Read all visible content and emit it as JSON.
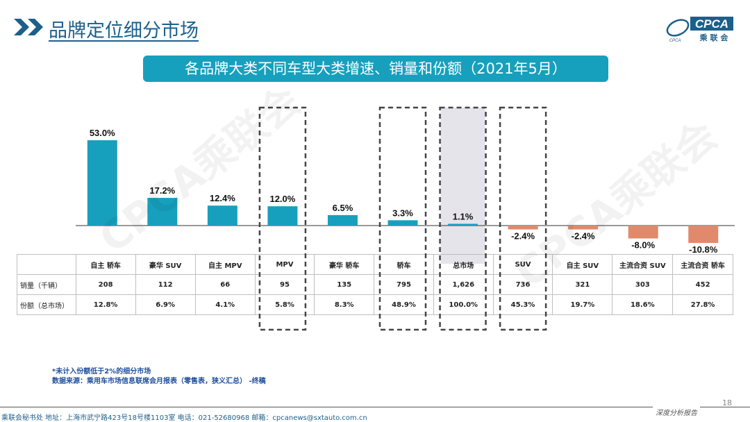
{
  "header": {
    "title": "品牌定位细分市场",
    "logo_text": "CPCA",
    "logo_sub": "乘 联 会",
    "logo_small": "CPCA"
  },
  "banner": {
    "text": "各品牌大类不同车型大类增速、销量和份额（2021年5月）"
  },
  "watermark": {
    "text": "CPCA乘联会"
  },
  "chart_data": {
    "type": "bar",
    "categories": [
      "自主 轿车",
      "豪华 SUV",
      "自主 MPV",
      "MPV",
      "豪华 轿车",
      "轿车",
      "总市场",
      "SUV",
      "自主 SUV",
      "主流合资 SUV",
      "主流合资 轿车"
    ],
    "values": [
      53.0,
      17.2,
      12.4,
      12.0,
      6.5,
      3.3,
      1.1,
      -2.4,
      -2.4,
      -8.0,
      -10.8
    ],
    "labels": [
      "53.0%",
      "17.2%",
      "12.4%",
      "12.0%",
      "6.5%",
      "3.3%",
      "1.1%",
      "-2.4%",
      "-2.4%",
      "-8.0%",
      "-10.8%"
    ],
    "colors": {
      "positive": "#17a0bd",
      "negative": "#e08a6b"
    },
    "highlighted": [
      "MPV",
      "轿车",
      "总市场",
      "SUV"
    ],
    "shaded": [
      "总市场"
    ],
    "table": [
      {
        "label": "销量（千辆）",
        "values": [
          "208",
          "112",
          "66",
          "95",
          "135",
          "795",
          "1,626",
          "736",
          "321",
          "303",
          "452"
        ]
      },
      {
        "label": "份额（总市场）",
        "values": [
          "12.8%",
          "6.9%",
          "4.1%",
          "5.8%",
          "8.3%",
          "48.9%",
          "100.0%",
          "45.3%",
          "19.7%",
          "18.6%",
          "27.8%"
        ]
      }
    ]
  },
  "notes": {
    "line1": "*未计入份额低于2%的细分市场",
    "line2": "数据来源：乘用车市场信息联席会月报表（零售表，狭义汇总）  -终稿"
  },
  "footer": {
    "page_number": "18",
    "text": "乘联会秘书处   地址：上海市武宁路423号18号楼1103室   电话：021-52680968   邮箱：cpcanews@sxtauto.com.cn",
    "tag": "深度分析报告"
  }
}
